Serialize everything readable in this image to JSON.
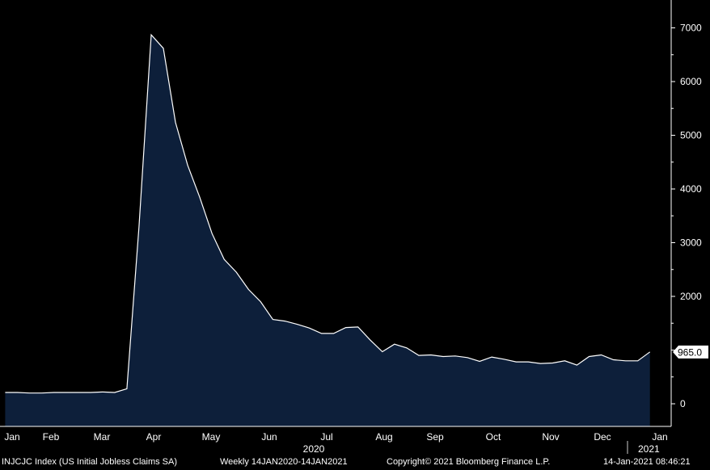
{
  "chart_data": {
    "type": "area",
    "x_tick_labels": [
      "Jan",
      "Feb",
      "Mar",
      "Apr",
      "May",
      "Jun",
      "Jul",
      "Aug",
      "Sep",
      "Oct",
      "Nov",
      "Dec",
      "Jan"
    ],
    "year_labels": [
      "2020",
      "2021"
    ],
    "y_ticks": [
      0,
      1000,
      2000,
      3000,
      4000,
      5000,
      6000,
      7000
    ],
    "ylim": [
      -500,
      7500
    ],
    "last_value_label": "965.0",
    "series": [
      {
        "x": [
          "2020-01-04",
          "2020-01-11",
          "2020-01-18",
          "2020-01-25",
          "2020-02-01",
          "2020-02-08",
          "2020-02-15",
          "2020-02-22",
          "2020-02-29",
          "2020-03-07",
          "2020-03-14",
          "2020-03-21",
          "2020-03-28",
          "2020-04-04",
          "2020-04-11",
          "2020-04-18",
          "2020-04-25",
          "2020-05-02",
          "2020-05-09",
          "2020-05-16",
          "2020-05-23",
          "2020-05-30",
          "2020-06-06",
          "2020-06-13",
          "2020-06-20",
          "2020-06-27",
          "2020-07-04",
          "2020-07-11",
          "2020-07-18",
          "2020-07-25",
          "2020-08-01",
          "2020-08-08",
          "2020-08-15",
          "2020-08-22",
          "2020-08-29",
          "2020-09-05",
          "2020-09-12",
          "2020-09-19",
          "2020-09-26",
          "2020-10-03",
          "2020-10-10",
          "2020-10-17",
          "2020-10-24",
          "2020-10-31",
          "2020-11-07",
          "2020-11-14",
          "2020-11-21",
          "2020-11-28",
          "2020-12-05",
          "2020-12-12",
          "2020-12-19",
          "2020-12-26",
          "2021-01-02",
          "2021-01-09"
        ],
        "values": [
          210,
          210,
          200,
          200,
          210,
          210,
          210,
          210,
          220,
          210,
          280,
          3300,
          6870,
          6620,
          5240,
          4440,
          3840,
          3170,
          2690,
          2450,
          2130,
          1900,
          1570,
          1540,
          1480,
          1410,
          1310,
          1310,
          1420,
          1430,
          1190,
          970,
          1110,
          1040,
          900,
          910,
          880,
          890,
          860,
          790,
          870,
          830,
          780,
          780,
          750,
          760,
          800,
          720,
          880,
          910,
          820,
          800,
          800,
          965
        ]
      }
    ]
  },
  "footer": {
    "ticker": "INJCJC Index (US Initial Jobless Claims SA)",
    "range": "Weekly 14JAN2020-14JAN2021",
    "copyright": "Copyright© 2021 Bloomberg Finance L.P.",
    "timestamp": "14-Jan-2021 08:46:21"
  },
  "colors": {
    "background": "#000000",
    "area_fill": "#0d1f3a",
    "line": "#ffffff"
  }
}
